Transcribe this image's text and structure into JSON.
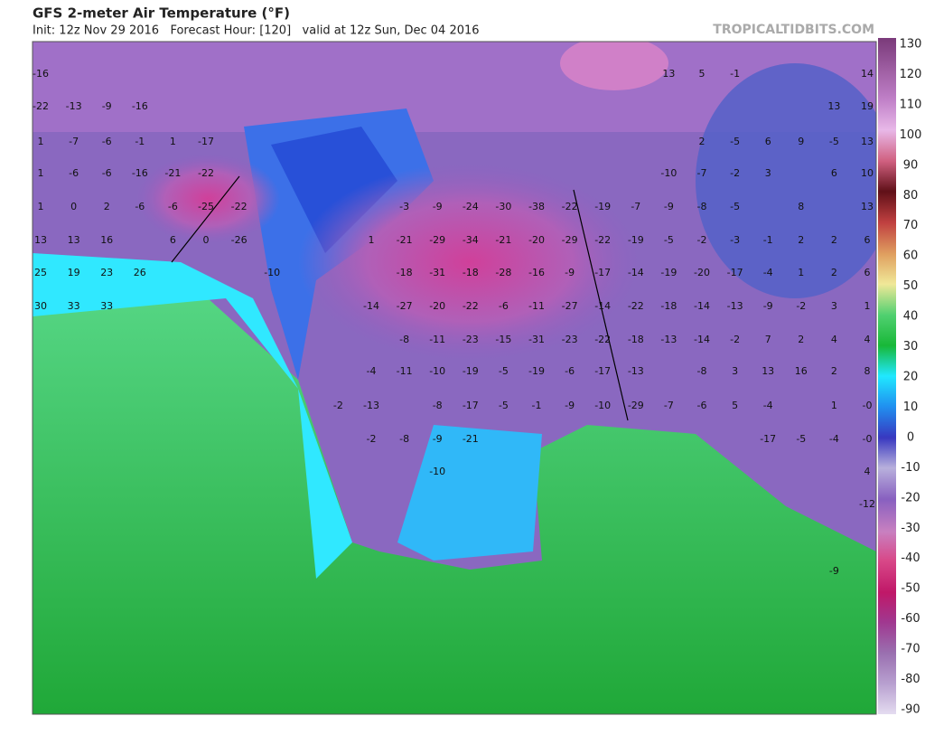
{
  "header": {
    "title": "GFS 2-meter Air Temperature (°F)",
    "subtitle": "Init: 12z Nov 29 2016   Forecast Hour: [120]   valid at 12z Sun, Dec 04 2016",
    "site": "TROPICALTIDBITS.COM"
  },
  "colorbar": {
    "ticks": [
      130,
      120,
      110,
      100,
      90,
      80,
      70,
      60,
      50,
      40,
      30,
      20,
      10,
      0,
      -10,
      -20,
      -30,
      -40,
      -50,
      -60,
      -70,
      -80,
      -90
    ]
  },
  "map_labels": [
    [
      "-16",
      "13",
      "5",
      "-1",
      "14"
    ],
    [
      "-22",
      "-13",
      "-9",
      "-16",
      "13",
      "19"
    ],
    [
      "1",
      "-7",
      "-6",
      "-1",
      "1",
      "-17",
      "2",
      "-5",
      "6",
      "9",
      "-5",
      "13"
    ],
    [
      "1",
      "-6",
      "-6",
      "-16",
      "-21",
      "-22",
      "-10",
      "-7",
      "-2",
      "3",
      "6",
      "10"
    ],
    [
      "1",
      "0",
      "2",
      "-6",
      "-6",
      "-25",
      "-22",
      "-3",
      "-9",
      "-24",
      "-30",
      "-38",
      "-22",
      "-19",
      "-7",
      "-9",
      "-8",
      "-5",
      "8",
      "13"
    ],
    [
      "13",
      "13",
      "16",
      "6",
      "0",
      "-26",
      "1",
      "-21",
      "-29",
      "-34",
      "-21",
      "-20",
      "-29",
      "-22",
      "-19",
      "-5",
      "-2",
      "-3",
      "-1",
      "2",
      "2",
      "6"
    ],
    [
      "25",
      "19",
      "23",
      "26",
      "-10",
      "-18",
      "-31",
      "-18",
      "-28",
      "-16",
      "-9",
      "-17",
      "-14",
      "-19",
      "-20",
      "-17",
      "-4",
      "1",
      "2",
      "6"
    ],
    [
      "30",
      "33",
      "33",
      "-14",
      "-27",
      "-20",
      "-22",
      "-6",
      "-11",
      "-27",
      "-14",
      "-22",
      "-18",
      "-14",
      "-13",
      "-9",
      "-2",
      "3",
      "1"
    ],
    [
      "-8",
      "-11",
      "-23",
      "-15",
      "-31",
      "-23",
      "-22",
      "-18",
      "-13",
      "-14",
      "-2",
      "7",
      "2",
      "4",
      "4"
    ],
    [
      "-4",
      "-11",
      "-10",
      "-19",
      "-5",
      "-19",
      "-6",
      "-17",
      "-13",
      "-8",
      "3",
      "13",
      "16",
      "2",
      "8"
    ],
    [
      "-2",
      "-13",
      "-8",
      "-17",
      "-5",
      "-1",
      "-9",
      "-10",
      "-29",
      "-7",
      "-6",
      "5",
      "-4",
      "1",
      "-0"
    ],
    [
      "-2",
      "-8",
      "-9",
      "-21",
      "-17",
      "-5",
      "-4",
      "-0"
    ],
    [
      "-10",
      "4"
    ],
    [
      "-12"
    ],
    [
      "-9"
    ]
  ]
}
